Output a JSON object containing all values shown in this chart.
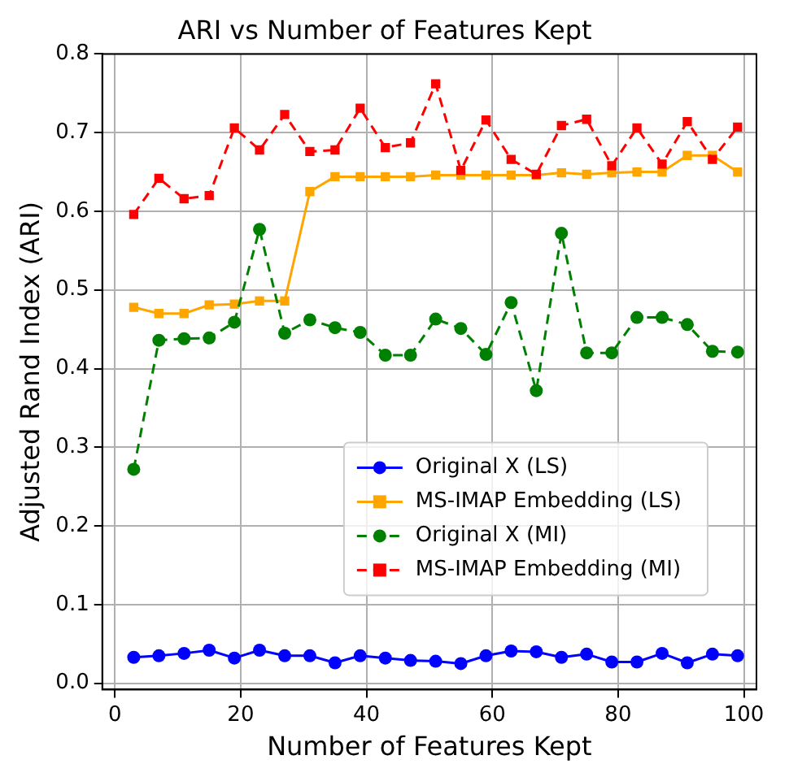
{
  "chart_data": {
    "type": "line",
    "title": "ARI vs Number of Features Kept",
    "xlabel": "Number of Features Kept",
    "ylabel": "Adjusted Rand Index (ARI)",
    "x": [
      3,
      7,
      11,
      15,
      19,
      23,
      27,
      31,
      35,
      39,
      43,
      47,
      51,
      55,
      59,
      63,
      67,
      71,
      75,
      79,
      83,
      87,
      91,
      95,
      99
    ],
    "series": [
      {
        "name": "Original X (LS)",
        "color": "#0000ff",
        "marker": "circle",
        "line_style": "solid",
        "values": [
          0.033,
          0.035,
          0.038,
          0.042,
          0.032,
          0.042,
          0.035,
          0.035,
          0.026,
          0.035,
          0.032,
          0.029,
          0.028,
          0.025,
          0.035,
          0.041,
          0.04,
          0.033,
          0.037,
          0.027,
          0.027,
          0.038,
          0.026,
          0.037,
          0.035
        ]
      },
      {
        "name": "MS-IMAP Embedding (LS)",
        "color": "#ffa500",
        "marker": "square",
        "line_style": "solid",
        "values": [
          0.478,
          0.47,
          0.47,
          0.481,
          0.482,
          0.486,
          0.486,
          0.625,
          0.644,
          0.644,
          0.644,
          0.644,
          0.646,
          0.646,
          0.646,
          0.646,
          0.646,
          0.649,
          0.647,
          0.649,
          0.65,
          0.65,
          0.671,
          0.671,
          0.65
        ]
      },
      {
        "name": "Original X (MI)",
        "color": "#008000",
        "marker": "circle",
        "line_style": "dashed",
        "values": [
          0.272,
          0.436,
          0.438,
          0.439,
          0.459,
          0.577,
          0.445,
          0.462,
          0.452,
          0.446,
          0.417,
          0.417,
          0.463,
          0.451,
          0.418,
          0.484,
          0.372,
          0.572,
          0.42,
          0.42,
          0.465,
          0.465,
          0.456,
          0.422,
          0.421
        ]
      },
      {
        "name": "MS-IMAP Embedding (MI)",
        "color": "#ff0000",
        "marker": "square",
        "line_style": "dashed",
        "values": [
          0.596,
          0.642,
          0.616,
          0.62,
          0.706,
          0.678,
          0.723,
          0.676,
          0.678,
          0.731,
          0.681,
          0.687,
          0.762,
          0.652,
          0.716,
          0.666,
          0.647,
          0.709,
          0.717,
          0.658,
          0.706,
          0.66,
          0.714,
          0.666,
          0.707
        ]
      }
    ],
    "xlim": [
      -2,
      102
    ],
    "xticks": [
      0,
      20,
      40,
      60,
      80,
      100
    ],
    "ylim": [
      -0.008,
      0.8
    ],
    "yticks": [
      {
        "value": 0,
        "label": "0.0"
      },
      {
        "value": 0.1,
        "label": "0.1"
      },
      {
        "value": 0.2,
        "label": "0.2"
      },
      {
        "value": 0.3,
        "label": "0.3"
      },
      {
        "value": 0.4,
        "label": "0.4"
      },
      {
        "value": 0.5,
        "label": "0.5"
      },
      {
        "value": 0.6,
        "label": "0.6"
      },
      {
        "value": 0.7,
        "label": "0.7"
      },
      {
        "value": 0.8,
        "label": "0.8"
      }
    ],
    "grid": true,
    "legend": "bottom right"
  }
}
